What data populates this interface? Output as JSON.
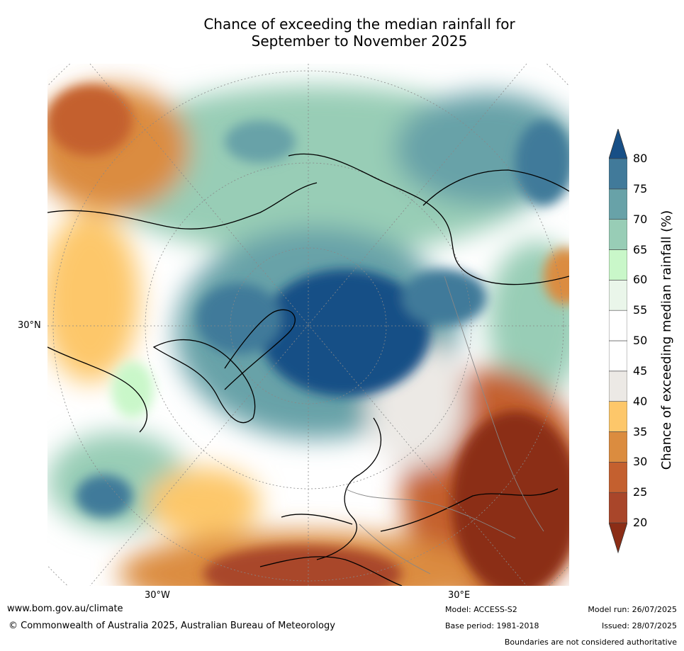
{
  "title": {
    "line1": "Chance of exceeding the median rainfall for",
    "line2": "September to November 2025"
  },
  "axis_labels": {
    "lat_30N": "30°N",
    "lon_30W": "30°W",
    "lon_30E": "30°E"
  },
  "colorbar": {
    "label": "Chance of exceeding median rainfall (%)",
    "ticks": [
      "20",
      "25",
      "30",
      "35",
      "40",
      "45",
      "50",
      "55",
      "60",
      "65",
      "70",
      "75",
      "80"
    ],
    "colors": [
      "#8b2d16",
      "#a9462a",
      "#c4602f",
      "#db8c3f",
      "#fdc76a",
      "#ece9e5",
      "#ffffff",
      "#ffffff",
      "#eaf6ea",
      "#c9f7c9",
      "#98cdb6",
      "#68a2a8",
      "#417a9a",
      "#174f86"
    ]
  },
  "footer": {
    "website": "www.bom.gov.au/climate",
    "copyright": "© Commonwealth of Australia 2025, Australian Bureau of Meteorology",
    "model": "Model: ACCESS-S2",
    "base_period": "Base period: 1981-2018",
    "model_run": "Model run: 26/07/2025",
    "issued": "Issued: 28/07/2025",
    "disclaimer": "Boundaries are not considered authoritative"
  }
}
